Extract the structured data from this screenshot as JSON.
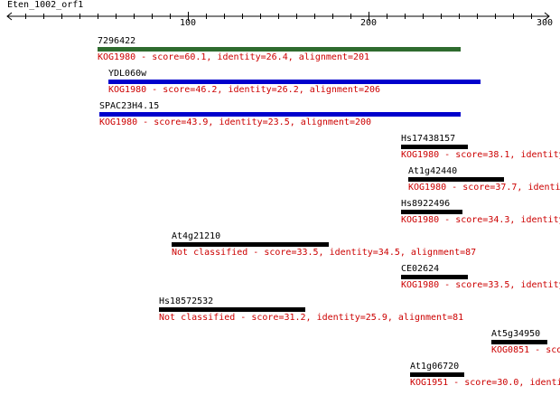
{
  "sequence": {
    "title": "Eten_1002_orf1",
    "axis": {
      "min": 0,
      "max": 300,
      "labels": [
        "100",
        "200",
        "300"
      ]
    }
  },
  "hits": [
    {
      "name": "7296422",
      "start": 50,
      "end": 251,
      "color": "#2e6b2e",
      "desc": "KOG1980 - score=60.1, identity=26.4, alignment=201"
    },
    {
      "name": "YDL060w",
      "start": 56,
      "end": 262,
      "color": "#0000cc",
      "desc": "KOG1980 - score=46.2, identity=26.2, alignment=206"
    },
    {
      "name": "SPAC23H4.15",
      "start": 51,
      "end": 251,
      "color": "#0000cc",
      "desc": "KOG1980 - score=43.9, identity=23.5, alignment=200"
    },
    {
      "name": "Hs17438157",
      "start": 218,
      "end": 255,
      "color": "#000000",
      "desc": "KOG1980 - score=38.1, identity"
    },
    {
      "name": "At1g42440",
      "start": 222,
      "end": 275,
      "color": "#000000",
      "desc": "KOG1980 - score=37.7, identi"
    },
    {
      "name": "Hs8922496",
      "start": 218,
      "end": 252,
      "color": "#000000",
      "desc": "KOG1980 - score=34.3, identity"
    },
    {
      "name": "At4g21210",
      "start": 91,
      "end": 178,
      "color": "#000000",
      "desc": "Not classified - score=33.5, identity=34.5, alignment=87"
    },
    {
      "name": "CE02624",
      "start": 218,
      "end": 255,
      "color": "#000000",
      "desc": "KOG1980 - score=33.5, identity"
    },
    {
      "name": "Hs18572532",
      "start": 84,
      "end": 165,
      "color": "#000000",
      "desc": "Not classified - score=31.2, identity=25.9, alignment=81"
    },
    {
      "name": "At5g34950",
      "start": 268,
      "end": 299,
      "color": "#000000",
      "desc": "KOG0851 - score"
    },
    {
      "name": "At1g06720",
      "start": 223,
      "end": 253,
      "color": "#000000",
      "desc": "KOG1951 - score=30.0, identi"
    }
  ]
}
